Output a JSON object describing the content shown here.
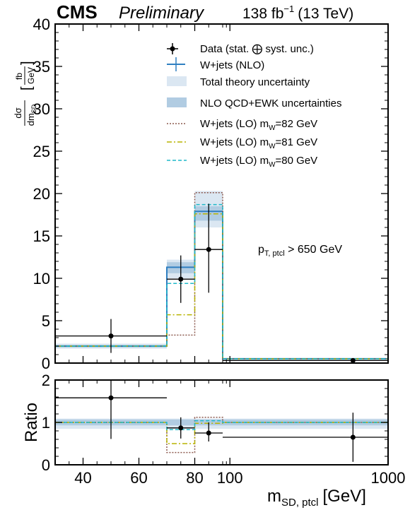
{
  "header": {
    "experiment": "CMS",
    "status": "Preliminary",
    "lumi": "138 fb",
    "lumi_exp": "−1",
    "energy": "(13 TeV)"
  },
  "axes": {
    "y_top_main": "dσ",
    "y_top_den": "dm",
    "y_top_den_sub": "SD",
    "y_unit_num": "fb",
    "y_unit_den": "GeV",
    "y_ratio": "Ratio",
    "x_main": "m",
    "x_sub": "SD, ptcl",
    "x_unit": "[GeV]"
  },
  "annotation": {
    "text": "p",
    "sub": "T, ptcl",
    "rest": " > 650 GeV"
  },
  "legend": {
    "data": "Data (stat. ⨁ syst. unc.)",
    "nlo": "W+jets (NLO)",
    "theory": "Total theory uncertainty",
    "qcd": "NLO QCD+EWK uncertainties",
    "lo82_a": "W+jets (LO) m",
    "lo82_sub": "W",
    "lo82_b": "=82 GeV",
    "lo81_a": "W+jets (LO) m",
    "lo81_sub": "W",
    "lo81_b": "=81 GeV",
    "lo80_a": "W+jets (LO) m",
    "lo80_sub": "W",
    "lo80_b": "=80 GeV"
  },
  "colors": {
    "nlo": "#2f7fc1",
    "theory_band": "#dbe7f2",
    "qcd_band": "#b1cce2",
    "lo82": "#8c5a4f",
    "lo81": "#b8b300",
    "lo80": "#1fb8c9",
    "data": "#000000"
  },
  "chart_data": [
    {
      "type": "step",
      "panel": "main",
      "ylim": [
        0,
        40
      ],
      "yticks": [
        0,
        5,
        10,
        15,
        20,
        25,
        30,
        35,
        40
      ],
      "x_tick_labels": [
        "40",
        "60",
        "80",
        "100",
        "1000"
      ],
      "x_ticks": [
        40,
        60,
        80,
        100,
        1000
      ],
      "bins": [
        [
          30,
          70
        ],
        [
          70,
          80
        ],
        [
          80,
          90
        ],
        [
          90,
          1000
        ]
      ],
      "series": [
        {
          "name": "W+jets (NLO)",
          "values": [
            2.0,
            11.3,
            17.9,
            0.5
          ]
        },
        {
          "name": "W+jets (LO) m_W=82 GeV",
          "values": [
            2.0,
            3.3,
            20.1,
            0.5
          ]
        },
        {
          "name": "W+jets (LO) m_W=81 GeV",
          "values": [
            2.0,
            5.7,
            17.6,
            0.5
          ]
        },
        {
          "name": "W+jets (LO) m_W=80 GeV",
          "values": [
            2.0,
            9.4,
            18.7,
            0.5
          ]
        }
      ],
      "bands": [
        {
          "name": "Total theory uncertainty",
          "low": [
            1.7,
            10.0,
            16.0,
            0.35
          ],
          "high": [
            2.3,
            12.2,
            20.3,
            0.65
          ]
        },
        {
          "name": "NLO QCD+EWK uncertainties",
          "low": [
            1.85,
            10.6,
            16.8,
            0.42
          ],
          "high": [
            2.15,
            11.9,
            18.5,
            0.58
          ]
        }
      ],
      "data": {
        "name": "Data (stat. ⨁ syst. unc.)",
        "x": [
          50,
          75,
          85,
          600
        ],
        "y": [
          3.2,
          9.9,
          13.4,
          0.3
        ],
        "yerr_low": [
          2.0,
          2.8,
          5.1,
          0.2
        ],
        "yerr_high": [
          2.0,
          2.8,
          5.4,
          0.2
        ]
      }
    },
    {
      "type": "step",
      "panel": "ratio",
      "ylim": [
        0,
        2
      ],
      "yticks": [
        0,
        1,
        2
      ],
      "bins": [
        [
          30,
          70
        ],
        [
          70,
          80
        ],
        [
          80,
          90
        ],
        [
          90,
          1000
        ]
      ],
      "series": [
        {
          "name": "W+jets (LO) m_W=82 GeV",
          "values": [
            1.0,
            0.29,
            1.12,
            1.0
          ]
        },
        {
          "name": "W+jets (LO) m_W=81 GeV",
          "values": [
            1.0,
            0.5,
            0.98,
            1.0
          ]
        },
        {
          "name": "W+jets (LO) m_W=80 GeV",
          "values": [
            1.0,
            0.83,
            1.04,
            1.0
          ]
        }
      ],
      "bands": [
        {
          "name": "Total theory uncertainty",
          "low": [
            0.85,
            0.85,
            0.85,
            0.85
          ],
          "high": [
            1.09,
            1.09,
            1.09,
            1.09
          ]
        },
        {
          "name": "NLO QCD+EWK uncertainties",
          "low": [
            0.93,
            0.93,
            0.93,
            0.93
          ],
          "high": [
            1.07,
            1.07,
            1.07,
            1.07
          ]
        }
      ],
      "data": {
        "name": "Data / NLO",
        "x": [
          50,
          75,
          85,
          600
        ],
        "y": [
          1.58,
          0.87,
          0.75,
          0.65
        ],
        "yerr_low": [
          0.97,
          0.25,
          0.2,
          0.58
        ],
        "yerr_high": [
          1.0,
          0.25,
          0.25,
          0.58
        ],
        "xerr_bins": [
          [
            30,
            70
          ],
          [
            70,
            80
          ],
          [
            80,
            90
          ],
          [
            90,
            1000
          ]
        ]
      }
    }
  ]
}
